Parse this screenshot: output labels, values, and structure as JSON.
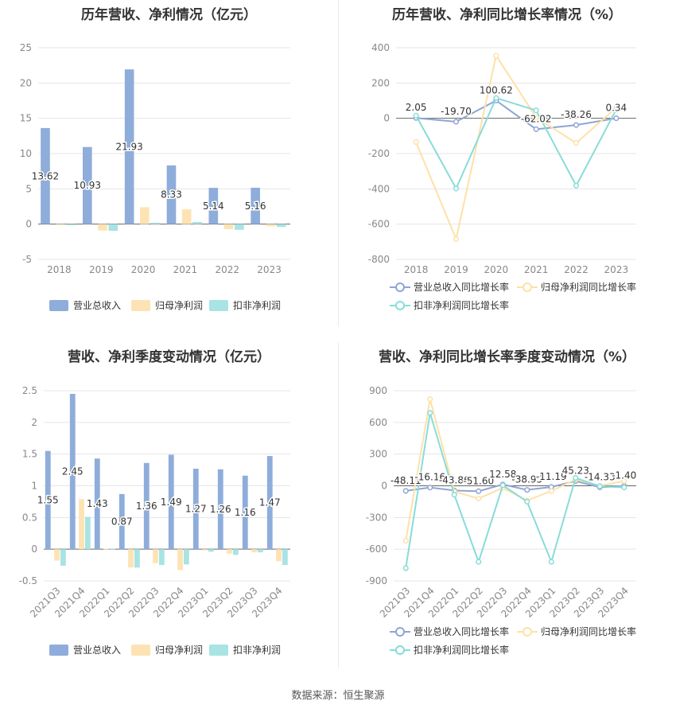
{
  "colors": {
    "revenue": "#8eadda",
    "net_profit": "#fde3b4",
    "deducted_profit": "#a9e3e3",
    "revenue_line": "#8ea5d6",
    "net_profit_line": "#fde1a8",
    "deducted_profit_line": "#88dcd8",
    "grid": "#e5e5ea",
    "axis_text": "#888888"
  },
  "footer": "数据来源：恒生聚源",
  "chart_data": [
    {
      "id": "annual_amount",
      "type": "bar",
      "title": "历年营收、净利情况（亿元）",
      "categories": [
        "2018",
        "2019",
        "2020",
        "2021",
        "2022",
        "2023"
      ],
      "ylim": [
        -5,
        25
      ],
      "yticks": [
        25,
        20,
        15,
        10,
        5,
        0,
        -5
      ],
      "series": [
        {
          "name": "营业总收入",
          "values": [
            13.62,
            10.93,
            21.93,
            8.33,
            5.14,
            5.16
          ],
          "labels": [
            "13.62",
            "10.93",
            "21.93",
            "8.33",
            "5.14",
            "5.16"
          ]
        },
        {
          "name": "归母净利润",
          "values": [
            -0.1,
            -0.9,
            2.4,
            2.1,
            -0.7,
            -0.3
          ]
        },
        {
          "name": "扣非净利润",
          "values": [
            -0.15,
            -0.95,
            0.2,
            0.3,
            -0.8,
            -0.4
          ]
        }
      ],
      "legend_position": "bottom",
      "grid": true
    },
    {
      "id": "annual_growth",
      "type": "line",
      "title": "历年营收、净利同比增长率情况（%）",
      "categories": [
        "2018",
        "2019",
        "2020",
        "2021",
        "2022",
        "2023"
      ],
      "ylim": [
        -800,
        400
      ],
      "yticks": [
        400,
        200,
        0,
        -200,
        -400,
        -600,
        -800
      ],
      "series": [
        {
          "name": "营业总收入同比增长率",
          "values": [
            2.05,
            -19.7,
            100.62,
            -62.02,
            -38.26,
            0.34
          ],
          "labels": [
            "2.05",
            "-19.70",
            "100.62",
            "-62.02",
            "-38.26",
            "0.34"
          ]
        },
        {
          "name": "归母净利润同比增长率",
          "values": [
            -135,
            -685,
            355,
            5,
            -140,
            60
          ]
        },
        {
          "name": "扣非净利润同比增长率",
          "values": [
            15,
            -398,
            115,
            45,
            -382,
            50
          ]
        }
      ],
      "legend_position": "bottom",
      "grid": true
    },
    {
      "id": "quarterly_amount",
      "type": "bar",
      "title": "营收、净利季度变动情况（亿元）",
      "categories": [
        "2021Q3",
        "2021Q4",
        "2022Q1",
        "2022Q2",
        "2022Q3",
        "2022Q4",
        "2023Q1",
        "2023Q2",
        "2023Q3",
        "2023Q4"
      ],
      "ylim": [
        -0.5,
        2.5
      ],
      "yticks": [
        2.5,
        2,
        1.5,
        1,
        0.5,
        0,
        -0.5
      ],
      "series": [
        {
          "name": "营业总收入",
          "values": [
            1.55,
            2.45,
            1.43,
            0.87,
            1.36,
            1.49,
            1.27,
            1.26,
            1.16,
            1.47
          ],
          "labels": [
            "1.55",
            "2.45",
            "1.43",
            "0.87",
            "1.36",
            "1.49",
            "1.27",
            "1.26",
            "1.16",
            "1.47"
          ]
        },
        {
          "name": "归母净利润",
          "values": [
            -0.18,
            0.79,
            0.01,
            -0.29,
            -0.22,
            -0.33,
            -0.02,
            -0.07,
            -0.05,
            -0.19
          ]
        },
        {
          "name": "扣非净利润",
          "values": [
            -0.26,
            0.51,
            0.01,
            -0.29,
            -0.25,
            -0.24,
            -0.04,
            -0.09,
            -0.05,
            -0.25
          ]
        }
      ],
      "legend_position": "bottom",
      "grid": true
    },
    {
      "id": "quarterly_growth",
      "type": "line",
      "title": "营收、净利同比增长率季度变动情况（%）",
      "categories": [
        "2021Q3",
        "2021Q4",
        "2022Q1",
        "2022Q2",
        "2022Q3",
        "2022Q4",
        "2023Q1",
        "2023Q2",
        "2023Q3",
        "2023Q4"
      ],
      "ylim": [
        -900,
        900
      ],
      "yticks": [
        900,
        600,
        300,
        0,
        -300,
        -600,
        -900
      ],
      "series": [
        {
          "name": "营业总收入同比增长率",
          "values": [
            -48.11,
            -16.16,
            -43.86,
            -51.6,
            12.58,
            -38.95,
            -11.19,
            45.23,
            -14.33,
            -1.4
          ],
          "labels": [
            "-48.11",
            "-16.16",
            "-43.86",
            "-51.60",
            "12.58",
            "-38.95",
            "-11.19",
            "45.23",
            "-14.33",
            "-1.40"
          ]
        },
        {
          "name": "归母净利润同比增长率",
          "values": [
            -520,
            820,
            -55,
            -120,
            -20,
            -140,
            -50,
            60,
            0,
            45
          ]
        },
        {
          "name": "扣非净利润同比增长率",
          "values": [
            -780,
            690,
            -85,
            -720,
            5,
            -150,
            -720,
            75,
            -5,
            -15
          ]
        }
      ],
      "legend_position": "bottom",
      "grid": true
    }
  ]
}
